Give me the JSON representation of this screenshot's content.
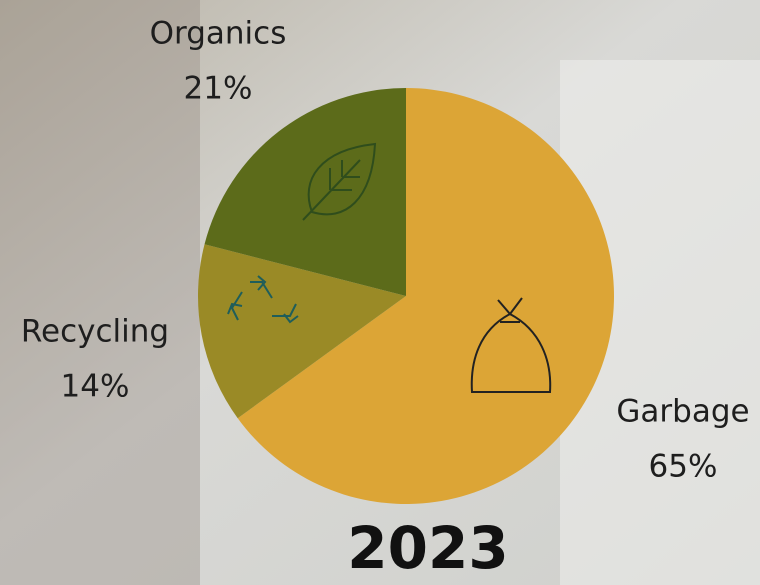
{
  "chart_data": {
    "type": "pie",
    "title": "2023",
    "categories": [
      "Garbage",
      "Recycling",
      "Organics"
    ],
    "values": [
      65,
      14,
      21
    ],
    "value_labels": [
      "65%",
      "14%",
      "21%"
    ],
    "colors": [
      "#dca536",
      "#9a8a26",
      "#5c6b1a"
    ]
  }
}
